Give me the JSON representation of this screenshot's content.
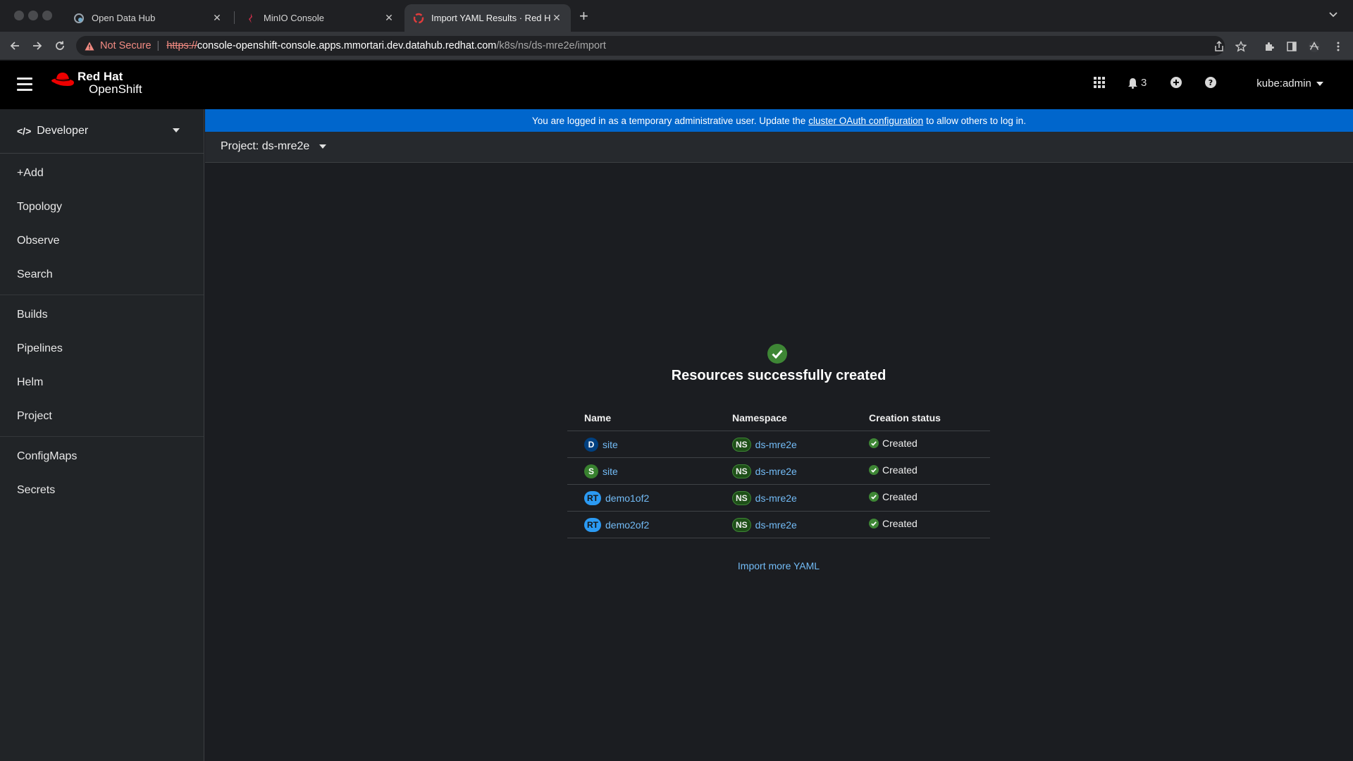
{
  "browser": {
    "tabs": [
      {
        "title": "Open Data Hub",
        "icon": "open-data-hub-icon"
      },
      {
        "title": "MinIO Console",
        "icon": "minio-icon"
      },
      {
        "title": "Import YAML Results · Red Ha",
        "icon": "openshift-icon"
      }
    ],
    "address": {
      "security": "Not Secure",
      "scheme": "https://",
      "host": "console-openshift-console.apps.mmortari.dev.datahub.redhat.com",
      "path": "/k8s/ns/ds-mre2e/import"
    }
  },
  "masthead": {
    "brand_line1": "Red Hat",
    "brand_line2": "OpenShift",
    "notifications": "3",
    "user": "kube:admin"
  },
  "sidebar": {
    "perspective": "Developer",
    "items": [
      "+Add",
      "Topology",
      "Observe",
      "Search",
      "Builds",
      "Pipelines",
      "Helm",
      "Project",
      "ConfigMaps",
      "Secrets"
    ]
  },
  "banner": {
    "before": "You are logged in as a temporary administrative user. Update the",
    "link": "cluster OAuth configuration",
    "after": "to allow others to log in."
  },
  "project": {
    "label": "Project: ds-mre2e"
  },
  "result": {
    "heading": "Resources successfully created",
    "columns": [
      "Name",
      "Namespace",
      "Creation status"
    ],
    "rows": [
      {
        "kind": "D",
        "name": "site",
        "ns_badge": "NS",
        "namespace": "ds-mre2e",
        "status": "Created"
      },
      {
        "kind": "S",
        "name": "site",
        "ns_badge": "NS",
        "namespace": "ds-mre2e",
        "status": "Created"
      },
      {
        "kind": "RT",
        "name": "demo1of2",
        "ns_badge": "NS",
        "namespace": "ds-mre2e",
        "status": "Created"
      },
      {
        "kind": "RT",
        "name": "demo2of2",
        "ns_badge": "NS",
        "namespace": "ds-mre2e",
        "status": "Created"
      }
    ],
    "import_more": "Import more YAML"
  },
  "colors": {
    "banner": "#0066cc",
    "link": "#73bcf7",
    "success": "#3e8635",
    "brand_red": "#ee0000"
  }
}
